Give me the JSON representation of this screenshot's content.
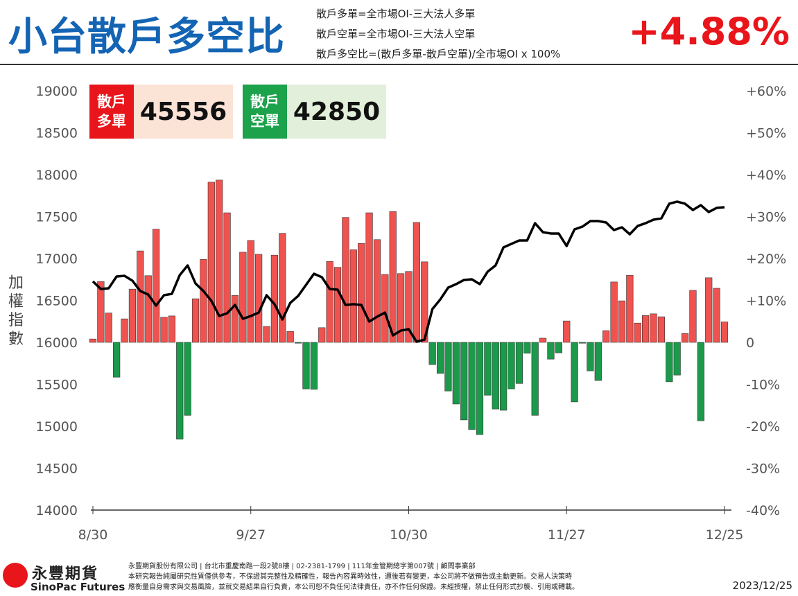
{
  "header": {
    "title": "小台散戶多空比",
    "definitions": [
      "散戶多單=全市場OI-三大法人多單",
      "散戶空單=全市場OI-三大法人空單",
      "散戶多空比=(散戶多單-散戶空單)/全市場OI x 100%"
    ],
    "headline": "+4.88%"
  },
  "boxes": [
    {
      "label": "散戶多單",
      "value": "45556",
      "label_color": "#e8151b",
      "value_bg": "#fbe3d6"
    },
    {
      "label": "散戶空單",
      "value": "42850",
      "label_color": "#1ba24b",
      "value_bg": "#e2efda"
    }
  ],
  "chart_data": {
    "type": "bar-line",
    "y_label": "加權指數",
    "categories": [
      "8/30",
      null,
      null,
      null,
      null,
      null,
      null,
      null,
      null,
      null,
      null,
      null,
      null,
      null,
      null,
      null,
      null,
      null,
      null,
      null,
      "9/27",
      null,
      null,
      null,
      null,
      null,
      null,
      null,
      null,
      null,
      null,
      null,
      null,
      null,
      null,
      null,
      null,
      null,
      null,
      null,
      "10/30",
      null,
      null,
      null,
      null,
      null,
      null,
      null,
      null,
      null,
      null,
      null,
      null,
      null,
      null,
      null,
      null,
      null,
      null,
      null,
      "11/27",
      null,
      null,
      null,
      null,
      null,
      null,
      null,
      null,
      null,
      null,
      null,
      null,
      null,
      null,
      null,
      null,
      null,
      null,
      null,
      "12/25"
    ],
    "bars": {
      "axis": "y2",
      "positive_color": "#ef5350",
      "negative_color": "#1a9a4a",
      "values": [
        0.8,
        14.5,
        7,
        -8.3,
        5.6,
        12.7,
        21.8,
        15.9,
        27,
        6,
        6.3,
        -23.1,
        -17.4,
        10.4,
        19.8,
        38.2,
        38.7,
        30.9,
        11.2,
        21.5,
        24.3,
        21,
        3.8,
        20.8,
        26,
        2.6,
        -0.2,
        -11.1,
        -11.2,
        3.5,
        19.3,
        17.9,
        29.8,
        22.1,
        23.6,
        30.9,
        24.5,
        16.2,
        31.2,
        16.4,
        16.9,
        28.6,
        19.2,
        -5.3,
        -7.4,
        -11.6,
        -14.7,
        -18.5,
        -20.8,
        -22,
        -12.6,
        -15.9,
        -16.2,
        -11.1,
        -9.8,
        -2.6,
        -17.4,
        1,
        -4,
        -2.5,
        5.1,
        -14.2,
        -0.2,
        -6.8,
        -9.1,
        2.8,
        14.4,
        9.9,
        16,
        4.6,
        6.4,
        6.8,
        6.1,
        -9.4,
        -7.8,
        2.1,
        12.4,
        -18.7,
        15.4,
        12.9,
        4.88
      ]
    },
    "line": {
      "color": "#000000",
      "values": [
        16727,
        16636,
        16645,
        16785,
        16793,
        16736,
        16612,
        16570,
        16438,
        16562,
        16578,
        16802,
        16917,
        16702,
        16612,
        16496,
        16314,
        16347,
        16446,
        16281,
        16314,
        16355,
        16562,
        16455,
        16273,
        16471,
        16554,
        16686,
        16818,
        16777,
        16636,
        16628,
        16446,
        16455,
        16446,
        16248,
        16306,
        16355,
        16083,
        16140,
        16157,
        16008,
        16033,
        16397,
        16512,
        16653,
        16694,
        16744,
        16752,
        16694,
        16843,
        16917,
        17132,
        17174,
        17215,
        17215,
        17421,
        17314,
        17298,
        17298,
        17149,
        17347,
        17380,
        17446,
        17446,
        17430,
        17339,
        17372,
        17289,
        17388,
        17421,
        17463,
        17479,
        17653,
        17678,
        17653,
        17579,
        17636,
        17554,
        17603,
        17612
      ]
    },
    "ylim": [
      14000,
      19000
    ],
    "yticks": [
      14000,
      14500,
      15000,
      15500,
      16000,
      16500,
      17000,
      17500,
      18000,
      18500,
      19000
    ],
    "y2lim": [
      -40,
      60
    ],
    "y2ticks": [
      {
        "value": -40,
        "label": "-40%"
      },
      {
        "value": -30,
        "label": "-30%"
      },
      {
        "value": -20,
        "label": "-20%"
      },
      {
        "value": -10,
        "label": "-10%"
      },
      0,
      {
        "value": 10,
        "label": "+10%"
      },
      {
        "value": 20,
        "label": "+20%"
      },
      {
        "value": 30,
        "label": "+30%"
      },
      {
        "value": 40,
        "label": "+40%"
      },
      {
        "value": 50,
        "label": "+50%"
      },
      {
        "value": 60,
        "label": "+60%"
      }
    ]
  },
  "footer": {
    "brand": "永豐期貨",
    "brand_en": "SinoPac Futures",
    "lines": [
      "永豐期貨股份有限公司 | 台北市重慶南路一段2號8樓 | 02-2381-1799 | 111年金管期總字第007號 | 顧問事業部",
      "本研究報告純屬研究性質僅供參考，不保證其完整性及精確性，報告內容異時效性，邇後若有變更，本公司將不做預告或主動更新。交易人決策時",
      "應衡量自身需求與交易風險，並就交易結果自行負責，本公司恕不負任何法律責任，亦不作任何保證。未經授權，禁止任何形式抄襲、引用或轉載。"
    ],
    "date": "2023/12/25"
  }
}
